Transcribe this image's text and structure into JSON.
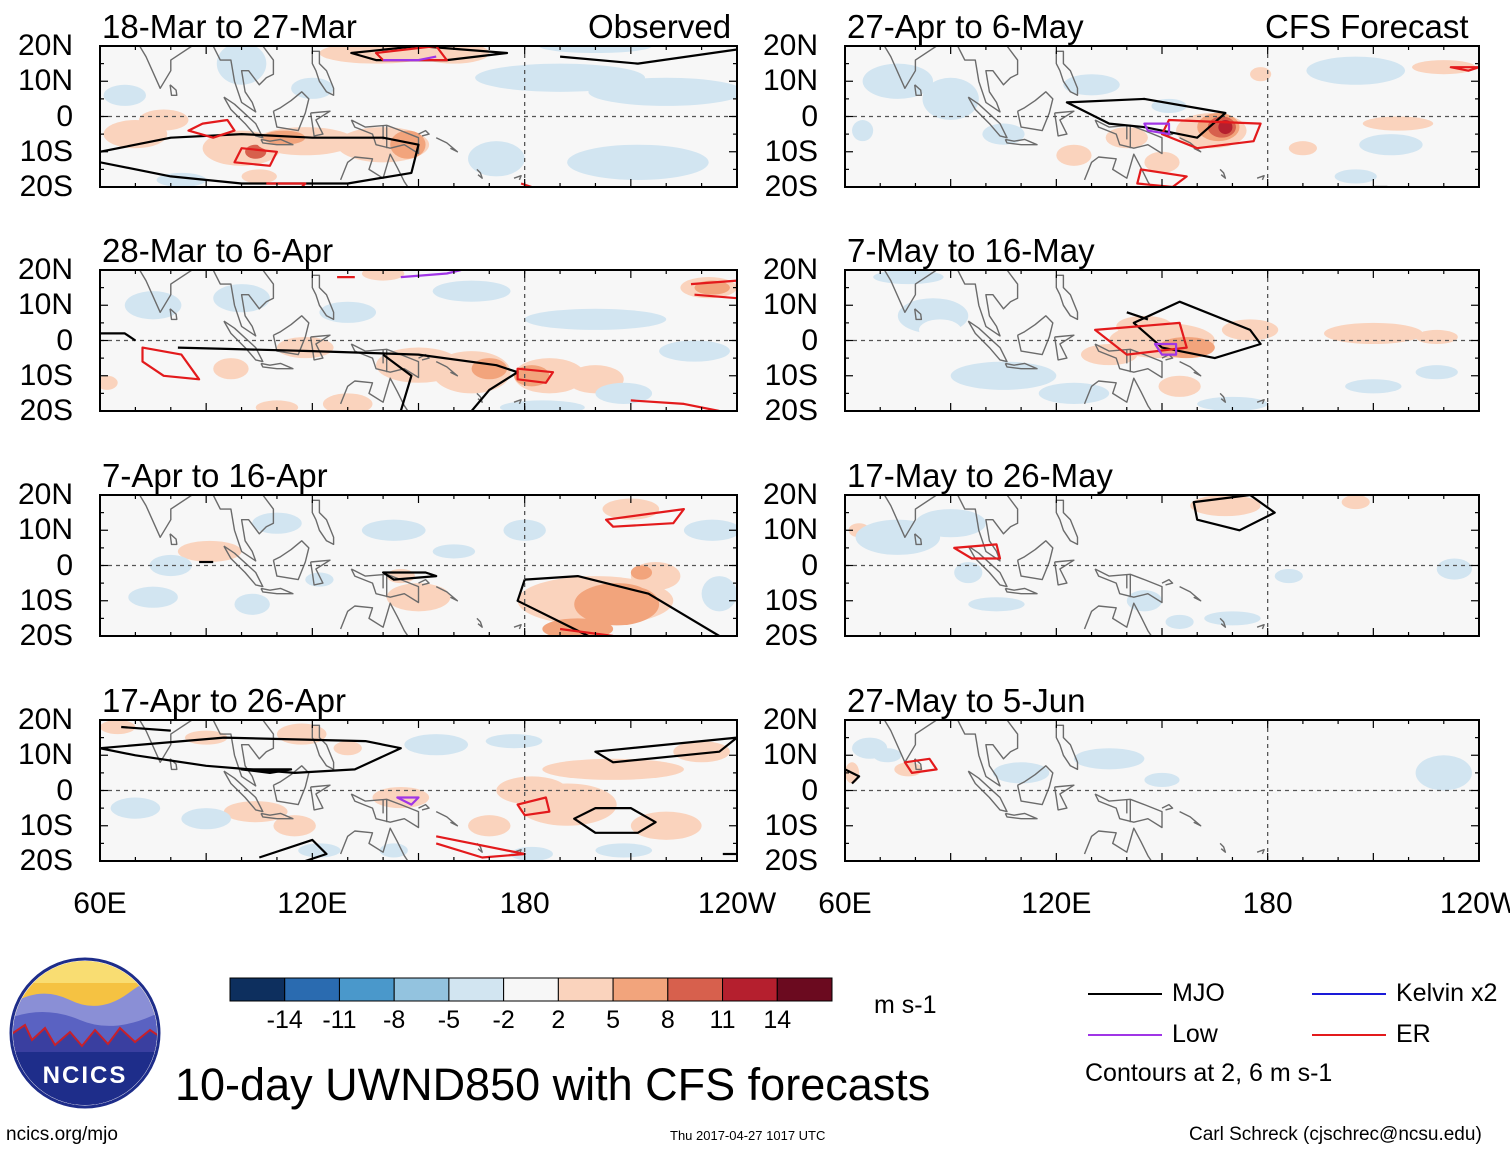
{
  "chart_data": {
    "type": "heatmap",
    "title": "10-day UWND850 with CFS forecasts",
    "variable": "UWND850",
    "units": "m s-1",
    "left_column_label": "Observed",
    "right_column_label": "CFS Forecast",
    "lat_ticks": [
      "20N",
      "10N",
      "0",
      "10S",
      "20S"
    ],
    "lon_ticks": [
      "60E",
      "120E",
      "180",
      "120W"
    ],
    "lat_range": [
      -20,
      20
    ],
    "lon_range": [
      60,
      240
    ],
    "panels": [
      {
        "period": "18-Mar to 27-Mar",
        "source": "Observed",
        "column": 0,
        "row": 0
      },
      {
        "period": "28-Mar to 6-Apr",
        "source": "Observed",
        "column": 0,
        "row": 1
      },
      {
        "period": "7-Apr to 16-Apr",
        "source": "Observed",
        "column": 0,
        "row": 2
      },
      {
        "period": "17-Apr to 26-Apr",
        "source": "Observed",
        "column": 0,
        "row": 3
      },
      {
        "period": "27-Apr to 6-May",
        "source": "CFS Forecast",
        "column": 1,
        "row": 0
      },
      {
        "period": "7-May to 16-May",
        "source": "CFS Forecast",
        "column": 1,
        "row": 1
      },
      {
        "period": "17-May to 26-May",
        "source": "CFS Forecast",
        "column": 1,
        "row": 2
      },
      {
        "period": "27-May to 5-Jun",
        "source": "CFS Forecast",
        "column": 1,
        "row": 3
      }
    ],
    "colorbar": {
      "levels": [
        "-14",
        "-11",
        "-8",
        "-5",
        "-2",
        "2",
        "5",
        "8",
        "11",
        "14"
      ],
      "colors": [
        "#0d2f5e",
        "#2a6bb0",
        "#4a98cb",
        "#93c3df",
        "#d2e5f1",
        "#f7f7f7",
        "#fad3bd",
        "#f2a47c",
        "#d7604d",
        "#b51f2e",
        "#6b0a1f"
      ]
    },
    "contour_legend": [
      {
        "label": "MJO",
        "color": "#000000"
      },
      {
        "label": "Low",
        "color": "#a035e6"
      },
      {
        "label": "Kelvin x2",
        "color": "#1a1ad8"
      },
      {
        "label": "ER",
        "color": "#e31a1c"
      }
    ],
    "contour_note": "Contours at 2, 6 m s-1"
  },
  "logo": {
    "text": "NCICS"
  },
  "footer": {
    "website": "ncics.org/mjo",
    "timestamp": "Thu 2017-04-27 1017 UTC",
    "credit": "Carl Schreck (cjschrec@ncsu.edu)"
  }
}
